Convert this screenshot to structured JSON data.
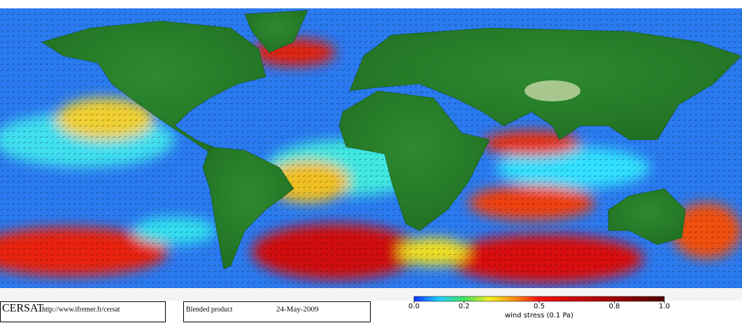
{
  "header": {
    "logo": "CERSAT",
    "url": "http://www.ifremer.fr/cersat",
    "product": "Blended product",
    "date": "24-May-2009"
  },
  "colorbar": {
    "label": "wind stress (0.1 Pa)",
    "ticks": [
      {
        "value": 0,
        "label": "0.0"
      },
      0.2,
      0.5,
      0.8,
      {
        "value": 1,
        "label": "1.0"
      }
    ]
  }
}
